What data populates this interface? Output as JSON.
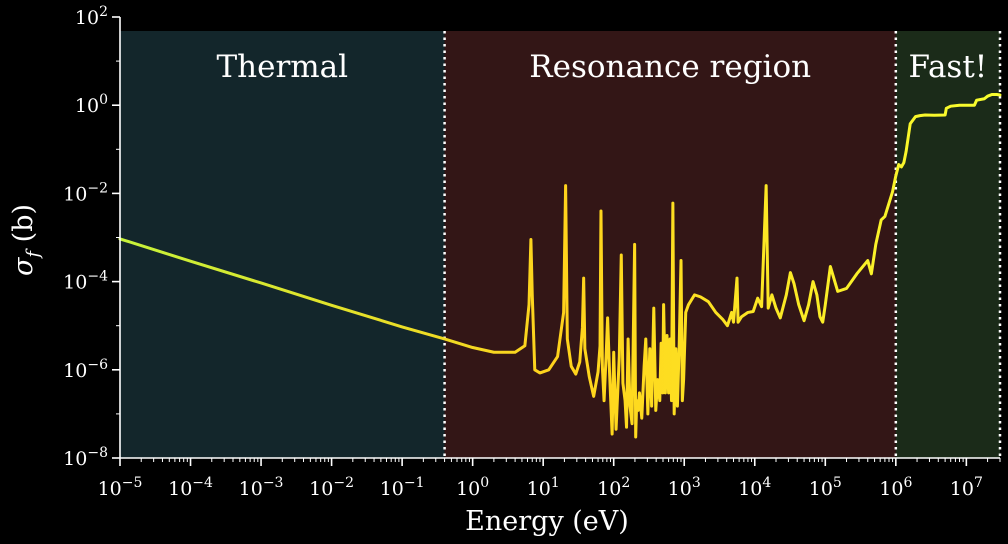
{
  "chart_data": {
    "type": "line",
    "title": "",
    "xlabel": "Energy (eV)",
    "ylabel": "σ_f (b)",
    "x_scale": "log",
    "y_scale": "log",
    "xlim": [
      1e-05,
      30000000.0
    ],
    "ylim": [
      1e-08,
      100
    ],
    "grid": false,
    "x_ticks": [
      {
        "value": 1e-05,
        "base": "10",
        "exp": "−5"
      },
      {
        "value": 0.0001,
        "base": "10",
        "exp": "−4"
      },
      {
        "value": 0.001,
        "base": "10",
        "exp": "−3"
      },
      {
        "value": 0.01,
        "base": "10",
        "exp": "−2"
      },
      {
        "value": 0.1,
        "base": "10",
        "exp": "−1"
      },
      {
        "value": 1,
        "base": "10",
        "exp": "0"
      },
      {
        "value": 10,
        "base": "10",
        "exp": "1"
      },
      {
        "value": 100,
        "base": "10",
        "exp": "2"
      },
      {
        "value": 1000,
        "base": "10",
        "exp": "3"
      },
      {
        "value": 10000.0,
        "base": "10",
        "exp": "4"
      },
      {
        "value": 100000.0,
        "base": "10",
        "exp": "5"
      },
      {
        "value": 1000000.0,
        "base": "10",
        "exp": "6"
      },
      {
        "value": 10000000.0,
        "base": "10",
        "exp": "7"
      }
    ],
    "y_ticks": [
      {
        "value": 1e-08,
        "base": "10",
        "exp": "−8"
      },
      {
        "value": 1e-06,
        "base": "10",
        "exp": "−6"
      },
      {
        "value": 0.0001,
        "base": "10",
        "exp": "−4"
      },
      {
        "value": 0.01,
        "base": "10",
        "exp": "−2"
      },
      {
        "value": 1,
        "base": "10",
        "exp": "0"
      },
      {
        "value": 100,
        "base": "10",
        "exp": "2"
      }
    ],
    "regions": [
      {
        "label": "Thermal",
        "x_start": 1e-05,
        "x_end": 0.4,
        "color": "#13262b"
      },
      {
        "label": "Resonance region",
        "x_start": 0.4,
        "x_end": 1000000.0,
        "color": "#331616"
      },
      {
        "label": "Fast!",
        "x_start": 1000000.0,
        "x_end": 30000000.0,
        "color": "#1b2b19"
      }
    ],
    "boundaries": [
      0.4,
      1000000.0,
      30000000.0
    ],
    "series_gradient": [
      "#c6f23a",
      "#ffd21c",
      "#f8ff2e"
    ],
    "series": [
      {
        "points": [
          [
            1e-05,
            0.00093
          ],
          [
            0.0001,
            0.00029
          ],
          [
            0.001,
            9.3e-05
          ],
          [
            0.01,
            2.9e-05
          ],
          [
            0.1,
            9.4e-06
          ],
          [
            0.4,
            5e-06
          ],
          [
            1,
            3.2e-06
          ],
          [
            2,
            2.5e-06
          ],
          [
            4,
            2.5e-06
          ],
          [
            5.5,
            3.5e-06
          ],
          [
            6.3,
            3e-05
          ],
          [
            6.7,
            0.0009
          ],
          [
            7.0,
            5e-05
          ],
          [
            7.6,
            1e-06
          ],
          [
            9,
            8.5e-07
          ],
          [
            12,
            1e-06
          ],
          [
            16,
            2e-06
          ],
          [
            19.5,
            2e-05
          ],
          [
            20.8,
            0.015
          ],
          [
            22,
            5e-06
          ],
          [
            25,
            1.2e-06
          ],
          [
            29,
            8e-07
          ],
          [
            33,
            1.5e-06
          ],
          [
            36,
            9e-06
          ],
          [
            37.5,
            0.00012
          ],
          [
            39,
            3e-06
          ],
          [
            45,
            7e-07
          ],
          [
            52,
            2.5e-07
          ],
          [
            60,
            9e-07
          ],
          [
            64,
            3.5e-06
          ],
          [
            66,
            0.004
          ],
          [
            69,
            1.2e-06
          ],
          [
            73,
            2e-07
          ],
          [
            78,
            2e-06
          ],
          [
            82,
            1.5e-05
          ],
          [
            87,
            1e-06
          ],
          [
            95,
            3.5e-08
          ],
          [
            100,
            2.5e-06
          ],
          [
            104,
            3e-07
          ],
          [
            108,
            4.5e-08
          ],
          [
            120,
            2e-06
          ],
          [
            128,
            0.0004
          ],
          [
            135,
            5e-07
          ],
          [
            145,
            2e-07
          ],
          [
            152,
            5e-08
          ],
          [
            160,
            5e-06
          ],
          [
            170,
            1.5e-07
          ],
          [
            182,
            6e-08
          ],
          [
            190,
            7e-06
          ],
          [
            198,
            0.0007
          ],
          [
            205,
            3e-08
          ],
          [
            212,
            2e-07
          ],
          [
            222,
            1.2e-07
          ],
          [
            232,
            3e-07
          ],
          [
            250,
            8e-08
          ],
          [
            270,
            1.2e-06
          ],
          [
            285,
            5e-06
          ],
          [
            305,
            1e-07
          ],
          [
            325,
            3e-06
          ],
          [
            345,
            1.5e-07
          ],
          [
            370,
            2.5e-05
          ],
          [
            395,
            1.2e-07
          ],
          [
            420,
            6e-07
          ],
          [
            450,
            2e-07
          ],
          [
            470,
            4e-06
          ],
          [
            495,
            3e-07
          ],
          [
            510,
            3e-05
          ],
          [
            540,
            3e-07
          ],
          [
            570,
            6e-06
          ],
          [
            600,
            3e-07
          ],
          [
            630,
            5e-06
          ],
          [
            660,
            2e-07
          ],
          [
            690,
            0.006
          ],
          [
            720,
            1e-07
          ],
          [
            760,
            3e-06
          ],
          [
            800,
            1.5e-07
          ],
          [
            850,
            4e-06
          ],
          [
            900,
            0.0003
          ],
          [
            940,
            2e-07
          ],
          [
            980,
            6e-07
          ],
          [
            1050,
            2e-05
          ],
          [
            1150,
            3e-05
          ],
          [
            1400,
            5e-05
          ],
          [
            1700,
            4.5e-05
          ],
          [
            2200,
            3.5e-05
          ],
          [
            2800,
            2e-05
          ],
          [
            3500,
            1.4e-05
          ],
          [
            4100,
            1e-05
          ],
          [
            4700,
            2e-05
          ],
          [
            5000,
            1.2e-05
          ],
          [
            5600,
            0.00012
          ],
          [
            5800,
            1.2e-05
          ],
          [
            6500,
            1.6e-05
          ],
          [
            8000,
            2e-05
          ],
          [
            9500,
            2.1e-05
          ],
          [
            11000,
            4.2e-05
          ],
          [
            12500,
            2.7e-05
          ],
          [
            14500,
            0.015
          ],
          [
            15500,
            2.5e-05
          ],
          [
            17500,
            5e-05
          ],
          [
            20000,
            2.5e-05
          ],
          [
            23000,
            1.5e-05
          ],
          [
            28000,
            5e-05
          ],
          [
            32000,
            0.00016
          ],
          [
            36000,
            9e-05
          ],
          [
            42000,
            3e-05
          ],
          [
            50000,
            1.3e-05
          ],
          [
            58000,
            3e-05
          ],
          [
            67000,
            0.0001
          ],
          [
            76000,
            5e-05
          ],
          [
            84000,
            1.6e-05
          ],
          [
            92000,
            1.2e-05
          ],
          [
            100000,
            3e-05
          ],
          [
            118000,
            0.00022
          ],
          [
            130000,
            0.00013
          ],
          [
            150000,
            6e-05
          ],
          [
            200000,
            7e-05
          ],
          [
            280000,
            0.00015
          ],
          [
            400000,
            0.0003
          ],
          [
            450000,
            0.00015
          ],
          [
            520000,
            0.0007
          ],
          [
            620000,
            0.0025
          ],
          [
            700000,
            0.003
          ],
          [
            800000,
            0.006
          ],
          [
            900000,
            0.011
          ],
          [
            1000000,
            0.025
          ],
          [
            1100000,
            0.045
          ],
          [
            1200000,
            0.04
          ],
          [
            1300000,
            0.05
          ],
          [
            1400000,
            0.09
          ],
          [
            1600000,
            0.38
          ],
          [
            1900000,
            0.55
          ],
          [
            2200000,
            0.58
          ],
          [
            2600000,
            0.6
          ],
          [
            3500000,
            0.59
          ],
          [
            5000000,
            0.6
          ],
          [
            5200000,
            0.85
          ],
          [
            6000000,
            0.95
          ],
          [
            8000000,
            1.0
          ],
          [
            10000000,
            1.0
          ],
          [
            13000000,
            1.0
          ],
          [
            14000000,
            1.3
          ],
          [
            18000000,
            1.4
          ],
          [
            20000000,
            1.6
          ],
          [
            23000000,
            1.75
          ],
          [
            27000000,
            1.75
          ],
          [
            30000000,
            1.7
          ]
        ]
      }
    ]
  }
}
